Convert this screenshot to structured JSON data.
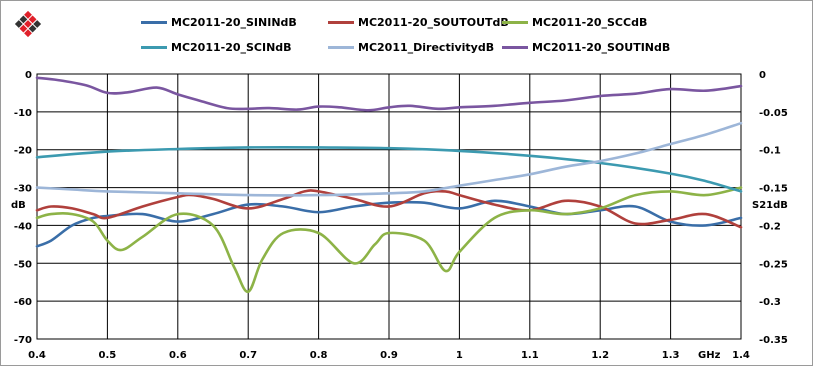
{
  "logo": {
    "icon": "diamond-grid-logo-icon",
    "colors": [
      "#e0202a",
      "#333333"
    ]
  },
  "chart_data": {
    "type": "line",
    "xlabel": "GHz",
    "ylabel": "dB",
    "y2label": "S21dB",
    "xlim": [
      0.4,
      1.4
    ],
    "ylim": [
      -70,
      0
    ],
    "y2lim": [
      -0.35,
      0
    ],
    "grid": true,
    "legend_placement": "top",
    "x_ticks": [
      "0.4",
      "0.5",
      "0.6",
      "0.7",
      "0.8",
      "0.9",
      "1",
      "1.1",
      "1.2",
      "1.3",
      "1.4"
    ],
    "y_ticks": [
      "0",
      "-10",
      "-20",
      "-30",
      "-40",
      "-50",
      "-60",
      "-70"
    ],
    "y2_ticks": [
      "0",
      "-0.05",
      "-0.1",
      "-0.15",
      "-0.2",
      "-0.25",
      "-0.3",
      "-0.35"
    ],
    "series": [
      {
        "name": "MC2011-20_SININdB",
        "color": "#3a6ea8",
        "axis": "left",
        "x": [
          0.4,
          0.42,
          0.45,
          0.48,
          0.5,
          0.55,
          0.6,
          0.65,
          0.7,
          0.75,
          0.8,
          0.85,
          0.9,
          0.95,
          1.0,
          1.05,
          1.1,
          1.15,
          1.2,
          1.25,
          1.3,
          1.35,
          1.4
        ],
        "y": [
          -45.5,
          -44,
          -40,
          -38,
          -37.5,
          -37,
          -39,
          -37,
          -34.5,
          -35,
          -36.5,
          -35,
          -34,
          -34,
          -35.5,
          -33.5,
          -35,
          -37,
          -36,
          -35,
          -39,
          -40,
          -38
        ]
      },
      {
        "name": "MC2011-20_SOUTOUTdB",
        "color": "#b0403c",
        "axis": "left",
        "x": [
          0.4,
          0.42,
          0.45,
          0.48,
          0.5,
          0.55,
          0.6,
          0.62,
          0.65,
          0.7,
          0.75,
          0.78,
          0.8,
          0.85,
          0.9,
          0.95,
          0.98,
          1.0,
          1.05,
          1.1,
          1.15,
          1.2,
          1.25,
          1.3,
          1.35,
          1.4
        ],
        "y": [
          -36,
          -35,
          -35.5,
          -37,
          -38,
          -35,
          -32.5,
          -32,
          -33,
          -35.5,
          -33,
          -31,
          -31,
          -33,
          -35,
          -31.5,
          -31,
          -32,
          -34.5,
          -36,
          -33.5,
          -35,
          -39.5,
          -38.5,
          -37,
          -40.5
        ]
      },
      {
        "name": "MC2011-20_SCCdB",
        "color": "#8db347",
        "axis": "left",
        "x": [
          0.4,
          0.42,
          0.45,
          0.48,
          0.5,
          0.52,
          0.55,
          0.6,
          0.65,
          0.68,
          0.7,
          0.72,
          0.75,
          0.8,
          0.85,
          0.88,
          0.9,
          0.95,
          0.98,
          1.0,
          1.05,
          1.1,
          1.15,
          1.2,
          1.25,
          1.3,
          1.35,
          1.4
        ],
        "y": [
          -38,
          -37,
          -37,
          -39,
          -44,
          -46.5,
          -43,
          -37,
          -40,
          -51,
          -57.5,
          -49,
          -42,
          -42,
          -50,
          -45,
          -42,
          -44,
          -52,
          -47,
          -38,
          -36,
          -37,
          -35.5,
          -32,
          -31,
          -32,
          -30
        ]
      },
      {
        "name": "MC2011-20_SCINdB",
        "color": "#3c9ab0",
        "axis": "left",
        "x": [
          0.4,
          0.5,
          0.6,
          0.7,
          0.8,
          0.9,
          1.0,
          1.1,
          1.2,
          1.3,
          1.35,
          1.4
        ],
        "y": [
          -22,
          -20.5,
          -19.8,
          -19.4,
          -19.4,
          -19.6,
          -20.3,
          -21.6,
          -23.5,
          -26.3,
          -28.3,
          -31
        ]
      },
      {
        "name": "MC2011_DirectivitydB",
        "color": "#9db6d8",
        "axis": "left",
        "x": [
          0.4,
          0.45,
          0.5,
          0.6,
          0.7,
          0.8,
          0.9,
          0.95,
          1.0,
          1.05,
          1.1,
          1.15,
          1.2,
          1.25,
          1.3,
          1.35,
          1.4
        ],
        "y": [
          -30,
          -30.5,
          -31,
          -31.5,
          -32,
          -32,
          -31.5,
          -31,
          -29.5,
          -28,
          -26.5,
          -24.5,
          -23,
          -21,
          -18.5,
          -16,
          -13
        ]
      },
      {
        "name": "MC2011-20_SOUTINdB",
        "color": "#7a56a0",
        "axis": "right",
        "x": [
          0.4,
          0.43,
          0.47,
          0.5,
          0.53,
          0.57,
          0.6,
          0.63,
          0.67,
          0.7,
          0.73,
          0.77,
          0.8,
          0.83,
          0.87,
          0.9,
          0.93,
          0.97,
          1.0,
          1.05,
          1.1,
          1.15,
          1.2,
          1.25,
          1.3,
          1.35,
          1.4
        ],
        "y": [
          -0.005,
          -0.008,
          -0.015,
          -0.025,
          -0.024,
          -0.018,
          -0.027,
          -0.035,
          -0.045,
          -0.046,
          -0.045,
          -0.047,
          -0.043,
          -0.044,
          -0.048,
          -0.044,
          -0.042,
          -0.046,
          -0.044,
          -0.042,
          -0.038,
          -0.035,
          -0.029,
          -0.026,
          -0.02,
          -0.022,
          -0.016
        ]
      }
    ]
  }
}
